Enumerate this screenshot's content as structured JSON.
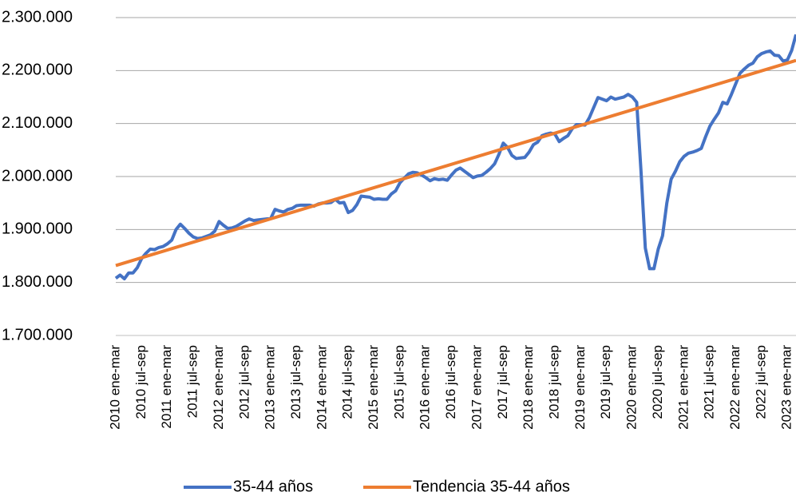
{
  "chart_data": {
    "type": "line",
    "categories": [
      "2010 ene-mar",
      null,
      null,
      null,
      null,
      null,
      "2010 jul-sep",
      null,
      null,
      null,
      null,
      null,
      "2011 ene-mar",
      null,
      null,
      null,
      null,
      null,
      "2011 jul-sep",
      null,
      null,
      null,
      null,
      null,
      "2012 ene-mar",
      null,
      null,
      null,
      null,
      null,
      "2012 jul-sep",
      null,
      null,
      null,
      null,
      null,
      "2013 ene-mar",
      null,
      null,
      null,
      null,
      null,
      "2013 jul-sep",
      null,
      null,
      null,
      null,
      null,
      "2014 ene-mar",
      null,
      null,
      null,
      null,
      null,
      "2014 jul-sep",
      null,
      null,
      null,
      null,
      null,
      "2015 ene-mar",
      null,
      null,
      null,
      null,
      null,
      "2015 jul-sep",
      null,
      null,
      null,
      null,
      null,
      "2016 ene-mar",
      null,
      null,
      null,
      null,
      null,
      "2016 jul-sep",
      null,
      null,
      null,
      null,
      null,
      "2017 ene-mar",
      null,
      null,
      null,
      null,
      null,
      "2017 jul-sep",
      null,
      null,
      null,
      null,
      null,
      "2018 ene-mar",
      null,
      null,
      null,
      null,
      null,
      "2018 jul-sep",
      null,
      null,
      null,
      null,
      null,
      "2019 ene-mar",
      null,
      null,
      null,
      null,
      null,
      "2019 jul-sep",
      null,
      null,
      null,
      null,
      null,
      "2020 ene-mar",
      null,
      null,
      null,
      null,
      null,
      "2020 jul-sep",
      null,
      null,
      null,
      null,
      null,
      "2021 ene-mar",
      null,
      null,
      null,
      null,
      null,
      "2021 jul-sep",
      null,
      null,
      null,
      null,
      null,
      "2022 ene-mar",
      null,
      null,
      null,
      null,
      null,
      "2022 jul-sep",
      null,
      null,
      null,
      null,
      null,
      "2023 ene-mar",
      null,
      null
    ],
    "series": [
      {
        "name": "35-44 años",
        "color": "#4472c4",
        "values": [
          1808000,
          1814000,
          1807000,
          1818000,
          1818000,
          1828000,
          1845000,
          1855000,
          1863000,
          1862000,
          1866000,
          1868000,
          1873000,
          1880000,
          1900000,
          1910000,
          1902000,
          1893000,
          1886000,
          1883000,
          1884000,
          1887000,
          1890000,
          1897000,
          1915000,
          1908000,
          1902000,
          1903000,
          1906000,
          1911000,
          1916000,
          1920000,
          1917000,
          1918000,
          1919000,
          1920000,
          1921000,
          1938000,
          1935000,
          1933000,
          1938000,
          1940000,
          1945000,
          1946000,
          1946000,
          1946000,
          1944000,
          1948000,
          1950000,
          1950000,
          1951000,
          1957000,
          1950000,
          1951000,
          1932000,
          1936000,
          1947000,
          1963000,
          1962000,
          1961000,
          1957000,
          1958000,
          1957000,
          1957000,
          1967000,
          1973000,
          1988000,
          1997000,
          2005000,
          2008000,
          2007000,
          2003000,
          1998000,
          1992000,
          1996000,
          1994000,
          1995000,
          1993000,
          2003000,
          2012000,
          2016000,
          2010000,
          2004000,
          1998000,
          2001000,
          2002000,
          2008000,
          2015000,
          2024000,
          2042000,
          2063000,
          2055000,
          2040000,
          2034000,
          2035000,
          2036000,
          2046000,
          2060000,
          2065000,
          2077000,
          2080000,
          2082000,
          2080000,
          2066000,
          2072000,
          2077000,
          2090000,
          2098000,
          2098000,
          2097000,
          2111000,
          2130000,
          2149000,
          2146000,
          2143000,
          2150000,
          2146000,
          2148000,
          2150000,
          2155000,
          2150000,
          2140000,
          2010000,
          1865000,
          1826000,
          1826000,
          1863000,
          1888000,
          1950000,
          1995000,
          2010000,
          2028000,
          2038000,
          2044000,
          2046000,
          2049000,
          2053000,
          2075000,
          2095000,
          2108000,
          2120000,
          2140000,
          2137000,
          2155000,
          2175000,
          2195000,
          2203000,
          2210000,
          2214000,
          2226000,
          2232000,
          2235000,
          2237000,
          2229000,
          2228000,
          2218000,
          2220000,
          2238000,
          2268000
        ]
      },
      {
        "name": "Tendencia 35-44 años",
        "color": "#ed7d31",
        "values": [
          1832000,
          1834450,
          1836900,
          1839350,
          1841800,
          1844250,
          1846700,
          1849150,
          1851600,
          1854050,
          1856500,
          1858950,
          1861400,
          1863850,
          1866300,
          1868750,
          1871200,
          1873650,
          1876100,
          1878550,
          1881000,
          1883450,
          1885900,
          1888350,
          1890800,
          1893250,
          1895700,
          1898150,
          1900600,
          1903050,
          1905500,
          1907950,
          1910400,
          1912850,
          1915300,
          1917750,
          1920200,
          1922650,
          1925100,
          1927550,
          1930000,
          1932450,
          1934900,
          1937350,
          1939800,
          1942250,
          1944700,
          1947150,
          1949600,
          1952050,
          1954500,
          1956950,
          1959400,
          1961850,
          1964300,
          1966750,
          1969200,
          1971650,
          1974100,
          1976550,
          1979000,
          1981450,
          1983900,
          1986350,
          1988800,
          1991250,
          1993700,
          1996150,
          1998600,
          2001050,
          2003500,
          2005950,
          2008400,
          2010850,
          2013300,
          2015750,
          2018200,
          2020650,
          2023100,
          2025550,
          2028000,
          2030450,
          2032900,
          2035350,
          2037800,
          2040250,
          2042700,
          2045150,
          2047600,
          2050050,
          2052500,
          2054950,
          2057400,
          2059850,
          2062300,
          2064750,
          2067200,
          2069650,
          2072100,
          2074550,
          2077000,
          2079450,
          2081900,
          2084350,
          2086800,
          2089250,
          2091700,
          2094150,
          2096600,
          2099050,
          2101500,
          2103950,
          2106400,
          2108850,
          2111300,
          2113750,
          2116200,
          2118650,
          2121100,
          2123550,
          2126000,
          2128450,
          2130900,
          2133350,
          2135800,
          2138250,
          2140700,
          2143150,
          2145600,
          2148050,
          2150500,
          2152950,
          2155400,
          2157850,
          2160300,
          2162750,
          2165200,
          2167650,
          2170100,
          2172550,
          2175000,
          2177450,
          2179900,
          2182350,
          2184800,
          2187250,
          2189700,
          2192150,
          2194600,
          2197050,
          2199500,
          2201950,
          2204400,
          2206850,
          2209300,
          2211750,
          2214200,
          2216650,
          2219100
        ]
      }
    ],
    "ylim": [
      1700000,
      2300000
    ],
    "yticks": [
      {
        "value": 1700000,
        "label": "1.700.000"
      },
      {
        "value": 1800000,
        "label": "1.800.000"
      },
      {
        "value": 1900000,
        "label": "1.900.000"
      },
      {
        "value": 2000000,
        "label": "2.000.000"
      },
      {
        "value": 2100000,
        "label": "2.100.000"
      },
      {
        "value": 2200000,
        "label": "2.200.000"
      },
      {
        "value": 2300000,
        "label": "2.300.000"
      }
    ],
    "grid": true,
    "legend": "bottom"
  }
}
